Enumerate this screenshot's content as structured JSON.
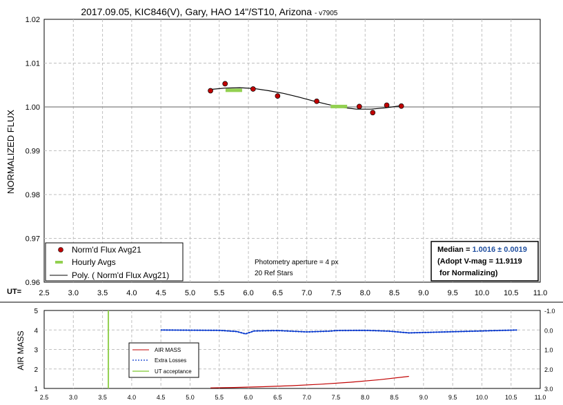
{
  "title": "2017.09.05, KIC846(V), Gary, HAO 14\"/ST10, Arizona",
  "title_suffix": "- v7905",
  "colors": {
    "flux_point": "#c00000",
    "hourly": "#92d050",
    "poly": "#000000",
    "airmass": "#c00000",
    "losses": "#0033cc",
    "ut_accept": "#92d050",
    "median_value": "#1f4e9f"
  },
  "top": {
    "ylabel": "NORMALIZED FLUX",
    "ut_label": "UT=",
    "xticks": [
      "2.5",
      "3.0",
      "3.5",
      "4.0",
      "4.5",
      "5.0",
      "5.5",
      "6.0",
      "6.5",
      "7.0",
      "7.5",
      "8.0",
      "8.5",
      "9.0",
      "9.5",
      "10.0",
      "10.5",
      "11.0"
    ],
    "yticks": [
      "1.02",
      "1.01",
      "1.00",
      "0.99",
      "0.98",
      "0.97",
      "0.96"
    ],
    "legend": [
      {
        "label": "Norm'd Flux Avg21",
        "icon": "red-dot-icon"
      },
      {
        "label": "Hourly Avgs",
        "icon": "green-dash-icon"
      },
      {
        "label": "Poly. ( Norm'd Flux Avg21)",
        "icon": "black-line-icon"
      }
    ],
    "note_line1": "Photometry aperture = 4 px",
    "note_line2": "20 Ref Stars",
    "median_label": "Median = ",
    "median_value": "1.0016 ± 0.0019",
    "adopt_line": "(Adopt V-mag = 11.9119",
    "normalizing_line": " for Normalizing)"
  },
  "bottom": {
    "ylabel": "AIR MASS",
    "xticks": [
      "2.5",
      "3.0",
      "3.5",
      "4.0",
      "4.5",
      "5.0",
      "5.5",
      "6.0",
      "6.5",
      "7.0",
      "7.5",
      "8.0",
      "8.5",
      "9.0",
      "9.5",
      "10.0",
      "10.5",
      "11.0"
    ],
    "yticks_left": [
      "5",
      "4",
      "3",
      "2",
      "1"
    ],
    "yticks_right": [
      "-1.0",
      "0.0",
      "1.0",
      "2.0",
      "3.0"
    ],
    "legend": [
      {
        "label": "AIR MASS",
        "icon": "red-line-icon"
      },
      {
        "label": "Extra Losses",
        "icon": "blue-dotted-line-icon"
      },
      {
        "label": "UT acceptance",
        "icon": "green-line-icon"
      }
    ]
  },
  "chart_data": [
    {
      "type": "scatter",
      "xlim": [
        2.5,
        11.0
      ],
      "ylim": [
        0.96,
        1.02
      ],
      "grid": true,
      "legend_position": "bottom-left",
      "series": [
        {
          "name": "Norm'd Flux Avg21",
          "x": [
            5.35,
            5.6,
            6.08,
            6.5,
            7.17,
            7.9,
            8.13,
            8.37,
            8.62
          ],
          "y": [
            1.0037,
            1.0053,
            1.0041,
            1.0025,
            1.0013,
            1.0001,
            0.9987,
            1.0004,
            1.0002
          ]
        },
        {
          "name": "Hourly Avgs",
          "x": [
            5.75,
            7.55
          ],
          "y": [
            1.0038,
            1.0001
          ]
        },
        {
          "name": "Poly. ( Norm'd Flux Avg21)",
          "x": [
            5.35,
            5.6,
            5.85,
            6.1,
            6.35,
            6.6,
            6.85,
            7.1,
            7.35,
            7.6,
            7.85,
            8.1,
            8.35,
            8.62
          ],
          "y": [
            1.004,
            1.0043,
            1.0044,
            1.0042,
            1.0037,
            1.0031,
            1.0023,
            1.0014,
            1.0006,
            0.9999,
            0.9995,
            0.9995,
            0.9998,
            1.0003
          ]
        }
      ]
    },
    {
      "type": "line",
      "xlim": [
        2.5,
        11.0
      ],
      "ylim": [
        1,
        5
      ],
      "y2lim": [
        -1.0,
        3.0
      ],
      "grid": true,
      "legend_position": "bottom-left",
      "series": [
        {
          "name": "AIR MASS",
          "x": [
            5.35,
            5.75,
            6.25,
            6.75,
            7.25,
            7.75,
            8.25,
            8.75
          ],
          "y": [
            1.03,
            1.05,
            1.09,
            1.14,
            1.22,
            1.32,
            1.45,
            1.62
          ]
        },
        {
          "name": "Extra Losses",
          "x": [
            4.5,
            5.5,
            5.8,
            5.95,
            6.1,
            6.5,
            7.0,
            7.4,
            7.5,
            8.0,
            8.4,
            8.75,
            10.6
          ],
          "y2": [
            0.0,
            0.02,
            0.08,
            0.2,
            0.05,
            0.03,
            0.1,
            0.06,
            0.03,
            0.02,
            0.06,
            0.15,
            0.0
          ]
        },
        {
          "name": "UT acceptance",
          "x": [
            3.6,
            3.6
          ],
          "y": [
            1,
            5
          ]
        }
      ]
    }
  ]
}
